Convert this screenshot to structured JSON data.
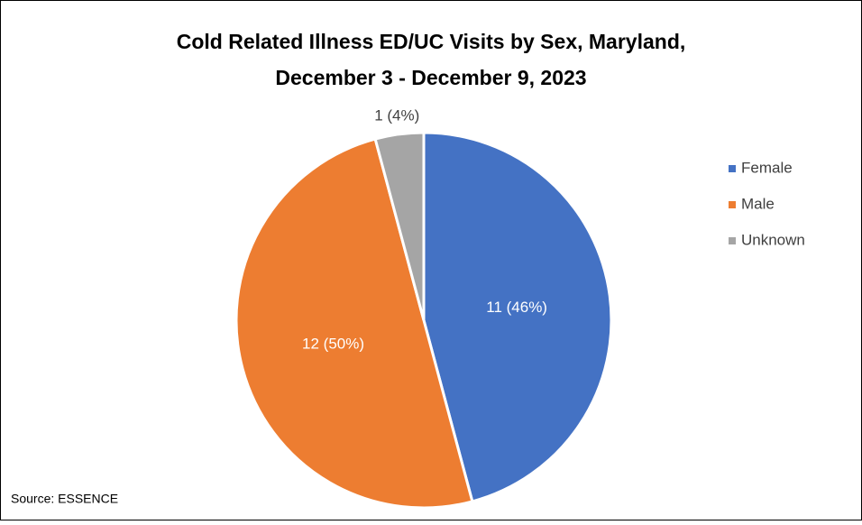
{
  "chart_data": {
    "type": "pie",
    "title": [
      "Cold Related Illness ED/UC Visits by Sex, Maryland,",
      "December 3 - December 9, 2023"
    ],
    "categories": [
      "Female",
      "Male",
      "Unknown"
    ],
    "values": [
      11,
      12,
      1
    ],
    "value_labels": [
      "11 (46%)",
      "12 (50%)",
      "1 (4%)"
    ],
    "colors": [
      "#4472c4",
      "#ed7d31",
      "#a5a5a5"
    ],
    "legend": "right",
    "source": "Source: ESSENCE"
  }
}
